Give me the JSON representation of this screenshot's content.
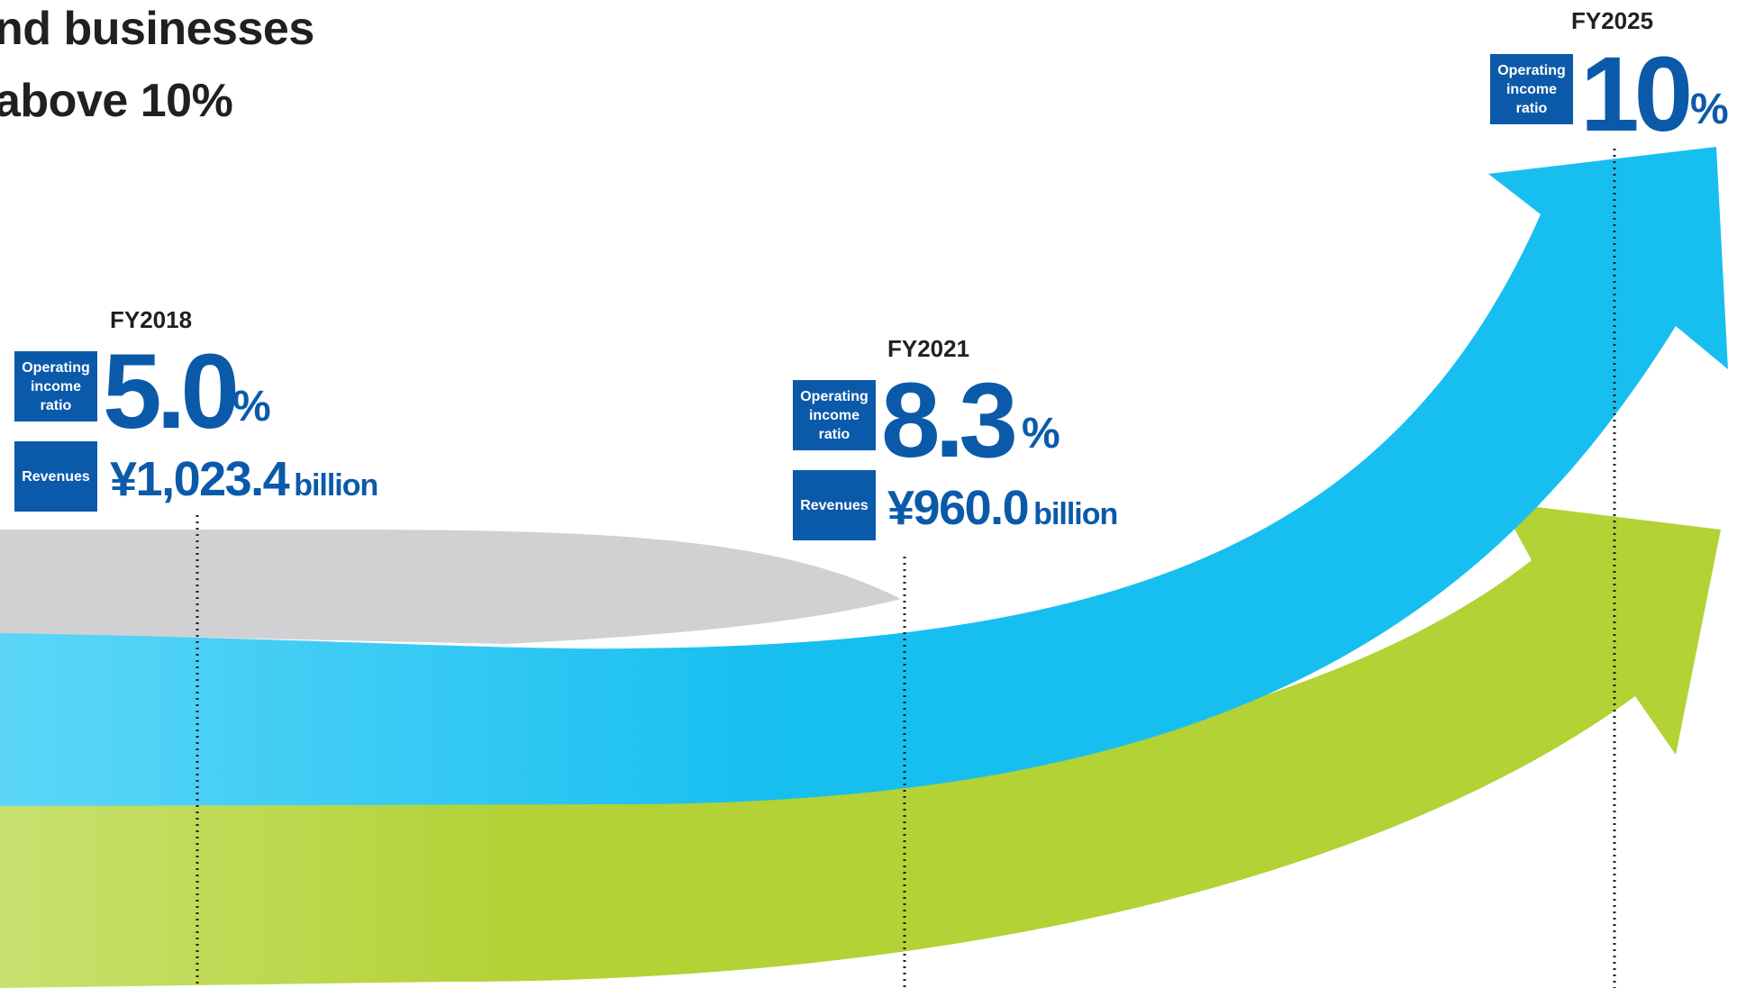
{
  "headline": {
    "line1": "nd businesses",
    "line2": "above 10%"
  },
  "milestones": [
    {
      "year": "FY2018",
      "ratio_label": "Operating income ratio",
      "ratio_value": "5.0",
      "ratio_unit": "%",
      "revenue_label": "Revenues",
      "revenue_value": "¥1,023.4",
      "revenue_unit": "billion"
    },
    {
      "year": "FY2021",
      "ratio_label": "Operating income ratio",
      "ratio_value": "8.3",
      "ratio_unit": "%",
      "revenue_label": "Revenues",
      "revenue_value": "¥960.0",
      "revenue_unit": "billion"
    },
    {
      "year": "FY2025",
      "ratio_label": "Operating income ratio",
      "ratio_value": "10",
      "ratio_unit": "%"
    }
  ],
  "colors": {
    "label_box": "#0b5aaa",
    "value_text": "#0b5aaa",
    "blue_arrow": "#17bff0",
    "green_arrow": "#b2d235",
    "gray_band": "#d1d0d2",
    "dotted_line": "#231f20"
  }
}
